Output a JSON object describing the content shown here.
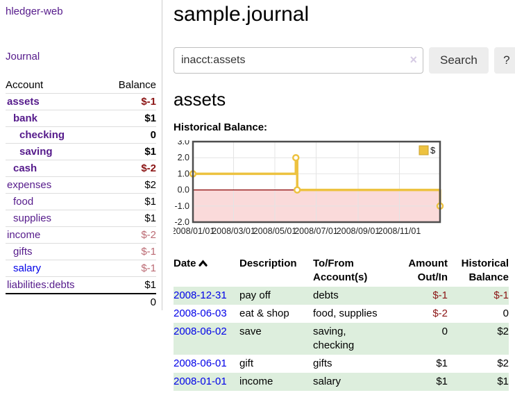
{
  "app": {
    "brand": "hledger-web"
  },
  "nav": {
    "journal": "Journal"
  },
  "colors": {
    "link_purple": "#551a8b",
    "link_blue": "#0000e8",
    "negative_dark_red": "#8b1414",
    "negative_muted_red": "#bb6a73",
    "row_stripe_green": "#ddeedd",
    "chart_line_yellow": "#edc240",
    "chart_negative_fill": "#fadada",
    "chart_zero_line": "#8b0000"
  },
  "sidebar": {
    "header": {
      "account": "Account",
      "balance": "Balance"
    },
    "accounts": [
      {
        "name": "assets",
        "depth": 1,
        "matched": true,
        "link_color": "purple",
        "balance": "$-1",
        "balance_style": "neg"
      },
      {
        "name": "bank",
        "depth": 2,
        "matched": true,
        "link_color": "purple",
        "balance": "$1",
        "balance_style": ""
      },
      {
        "name": "checking",
        "depth": 3,
        "matched": true,
        "link_color": "purple",
        "balance": "0",
        "balance_style": ""
      },
      {
        "name": "saving",
        "depth": 3,
        "matched": true,
        "link_color": "purple",
        "balance": "$1",
        "balance_style": ""
      },
      {
        "name": "cash",
        "depth": 2,
        "matched": true,
        "link_color": "purple",
        "balance": "$-2",
        "balance_style": "neg"
      },
      {
        "name": "expenses",
        "depth": 1,
        "matched": false,
        "link_color": "purple",
        "balance": "$2",
        "balance_style": ""
      },
      {
        "name": "food",
        "depth": 2,
        "matched": false,
        "link_color": "purple",
        "balance": "$1",
        "balance_style": ""
      },
      {
        "name": "supplies",
        "depth": 2,
        "matched": false,
        "link_color": "purple",
        "balance": "$1",
        "balance_style": ""
      },
      {
        "name": "income",
        "depth": 1,
        "matched": false,
        "link_color": "purple",
        "balance": "$-2",
        "balance_style": "negmuted"
      },
      {
        "name": "gifts",
        "depth": 2,
        "matched": false,
        "link_color": "purple",
        "balance": "$-1",
        "balance_style": "negmuted"
      },
      {
        "name": "salary",
        "depth": 2,
        "matched": false,
        "link_color": "blue",
        "balance": "$-1",
        "balance_style": "negmuted"
      },
      {
        "name": "liabilities:debts",
        "depth": 1,
        "matched": false,
        "link_color": "purple",
        "balance": "$1",
        "balance_style": ""
      }
    ],
    "total": "0"
  },
  "header": {
    "title": "sample.journal"
  },
  "search": {
    "value": "inacct:assets",
    "clear_icon": "×",
    "button_label": "Search",
    "help_label": "?"
  },
  "account_page": {
    "heading": "assets",
    "chart_title": "Historical Balance:"
  },
  "chart_data": {
    "type": "line",
    "step": true,
    "x_range": [
      "2008-01-01",
      "2008-12-31"
    ],
    "ylim": [
      -2,
      3
    ],
    "y_ticks": [
      3,
      2,
      1,
      0,
      -1,
      -2
    ],
    "x_ticks": [
      "2008/01/01",
      "2008/03/01",
      "2008/05/01",
      "2008/07/01",
      "2008/09/01",
      "2008/11/01"
    ],
    "grid": true,
    "legend_position": "top-right",
    "series": [
      {
        "name": "$",
        "color": "#edc240",
        "points": [
          [
            "2008-01-01",
            1
          ],
          [
            "2008-06-01",
            2
          ],
          [
            "2008-06-03",
            0
          ],
          [
            "2008-12-31",
            -1
          ]
        ]
      }
    ],
    "negative_fill": "#fadada",
    "zero_line_color": "#8b0000"
  },
  "register": {
    "columns": {
      "date": "Date",
      "description": "Description",
      "tofrom": "To/From Account(s)",
      "amount": "Amount Out/In",
      "balance": "Historical Balance"
    },
    "rows": [
      {
        "date": "2008-12-31",
        "description": "pay off",
        "accounts": "debts",
        "amount": "$-1",
        "amount_neg": true,
        "balance": "$-1",
        "balance_neg": true
      },
      {
        "date": "2008-06-03",
        "description": "eat & shop",
        "accounts": "food, supplies",
        "amount": "$-2",
        "amount_neg": true,
        "balance": "0",
        "balance_neg": false
      },
      {
        "date": "2008-06-02",
        "description": "save",
        "accounts": "saving, checking",
        "amount": "0",
        "amount_neg": false,
        "balance": "$2",
        "balance_neg": false
      },
      {
        "date": "2008-06-01",
        "description": "gift",
        "accounts": "gifts",
        "amount": "$1",
        "amount_neg": false,
        "balance": "$2",
        "balance_neg": false
      },
      {
        "date": "2008-01-01",
        "description": "income",
        "accounts": "salary",
        "amount": "$1",
        "amount_neg": false,
        "balance": "$1",
        "balance_neg": false
      }
    ]
  }
}
